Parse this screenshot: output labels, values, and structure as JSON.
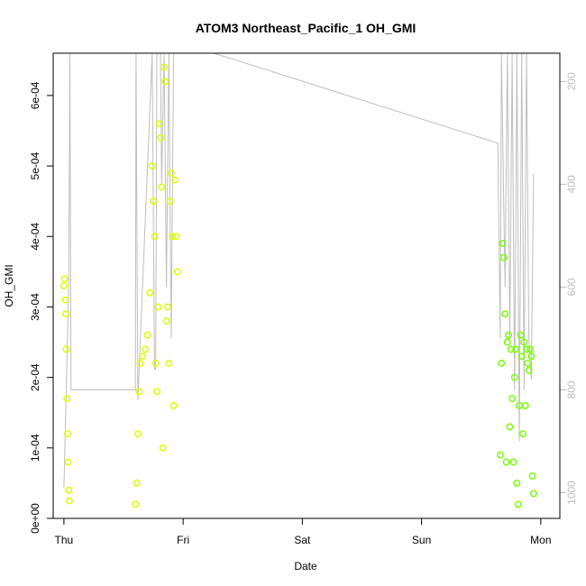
{
  "chart_data": {
    "type": "scatter",
    "title": "ATOM3 Northeast_Pacific_1 OH_GMI",
    "xlabel": "Date",
    "ylabel": "OH_GMI",
    "x_ticks": [
      "Thu",
      "Fri",
      "Sat",
      "Sun",
      "Mon"
    ],
    "x_tick_values": [
      0,
      1,
      2,
      3,
      4
    ],
    "xlim": [
      -0.09,
      4.16
    ],
    "ylim": [
      0,
      0.00066
    ],
    "y_ticks": [
      0,
      0.0001,
      0.0002,
      0.0003,
      0.0004,
      0.0005,
      0.0006
    ],
    "y_tick_labels": [
      "0e+00",
      "1e-04",
      "2e-04",
      "3e-04",
      "4e-04",
      "5e-04",
      "6e-04"
    ],
    "y2_axis": {
      "ticks": [
        200,
        400,
        600,
        800,
        1000
      ],
      "tick_labels": [
        "200",
        "400",
        "600",
        "800",
        "1000"
      ],
      "reversed": true,
      "lim": [
        145,
        1050
      ],
      "color": "#bebebe"
    },
    "grid": false,
    "colors": {
      "early_points": "#ddff00",
      "late_points": "#77ff00",
      "secondary_line": "#bebebe"
    },
    "series": [
      {
        "points": [
          [
            0.0,
            0.00033
          ],
          [
            0.005,
            0.00034
          ],
          [
            0.01,
            0.00031
          ],
          [
            0.015,
            0.00029
          ],
          [
            0.02,
            0.00024
          ],
          [
            0.025,
            0.00017
          ],
          [
            0.03,
            0.00012
          ],
          [
            0.035,
            8e-05
          ],
          [
            0.04,
            4e-05
          ],
          [
            0.045,
            2.5e-05
          ]
        ],
        "color": "#ddff00"
      },
      {
        "points": [
          [
            0.6,
            2e-05
          ],
          [
            0.61,
            5e-05
          ],
          [
            0.62,
            0.00012
          ],
          [
            0.63,
            0.00018
          ],
          [
            0.64,
            0.00022
          ],
          [
            0.66,
            0.00023
          ],
          [
            0.68,
            0.00024
          ],
          [
            0.7,
            0.00026
          ],
          [
            0.72,
            0.00032
          ],
          [
            0.74,
            0.0005
          ],
          [
            0.75,
            0.00045
          ],
          [
            0.76,
            0.0004
          ],
          [
            0.77,
            0.00022
          ],
          [
            0.78,
            0.00018
          ],
          [
            0.79,
            0.0003
          ],
          [
            0.8,
            0.00056
          ],
          [
            0.81,
            0.00054
          ],
          [
            0.82,
            0.00047
          ],
          [
            0.83,
            0.0001
          ],
          [
            0.84,
            0.00064
          ],
          [
            0.85,
            0.00062
          ],
          [
            0.86,
            0.00028
          ],
          [
            0.87,
            0.0003
          ],
          [
            0.88,
            0.00022
          ],
          [
            0.89,
            0.00045
          ],
          [
            0.9,
            0.00049
          ],
          [
            0.91,
            0.0004
          ],
          [
            0.92,
            0.00016
          ],
          [
            0.93,
            0.00048
          ],
          [
            0.94,
            0.0004
          ],
          [
            0.95,
            0.00035
          ]
        ],
        "color": "#ddff00"
      },
      {
        "points": [
          [
            3.66,
            9e-05
          ],
          [
            3.67,
            0.00022
          ],
          [
            3.68,
            0.00039
          ],
          [
            3.69,
            0.00037
          ],
          [
            3.7,
            0.00029
          ],
          [
            3.71,
            8e-05
          ],
          [
            3.72,
            0.00025
          ],
          [
            3.73,
            0.00026
          ],
          [
            3.74,
            0.00013
          ],
          [
            3.75,
            0.00024
          ],
          [
            3.76,
            0.00017
          ],
          [
            3.77,
            8e-05
          ],
          [
            3.78,
            0.0002
          ],
          [
            3.79,
            0.00024
          ],
          [
            3.8,
            5e-05
          ],
          [
            3.81,
            2e-05
          ],
          [
            3.82,
            0.00016
          ],
          [
            3.83,
            0.00026
          ],
          [
            3.84,
            0.00023
          ],
          [
            3.85,
            0.00012
          ],
          [
            3.86,
            0.00025
          ],
          [
            3.87,
            0.00016
          ],
          [
            3.88,
            0.00024
          ],
          [
            3.89,
            0.00022
          ],
          [
            3.9,
            0.00021
          ],
          [
            3.91,
            0.00024
          ],
          [
            3.92,
            0.00023
          ],
          [
            3.93,
            6e-05
          ],
          [
            3.94,
            3.5e-05
          ]
        ],
        "color": "#77ff00"
      }
    ],
    "secondary_series": {
      "axis": "y2",
      "color": "#bebebe",
      "points": [
        [
          0.0,
          990
        ],
        [
          0.02,
          800
        ],
        [
          0.04,
          600
        ],
        [
          0.05,
          145
        ],
        [
          0.06,
          800
        ],
        [
          0.6,
          800
        ],
        [
          0.605,
          145
        ],
        [
          0.62,
          820
        ],
        [
          0.74,
          145
        ],
        [
          0.76,
          760
        ],
        [
          0.77,
          760
        ],
        [
          0.78,
          145
        ],
        [
          0.81,
          145
        ],
        [
          0.82,
          400
        ],
        [
          0.84,
          145
        ],
        [
          0.86,
          600
        ],
        [
          0.88,
          145
        ],
        [
          0.9,
          700
        ],
        [
          0.92,
          145
        ],
        [
          1.26,
          145
        ],
        [
          3.64,
          320
        ],
        [
          3.66,
          700
        ],
        [
          3.67,
          145
        ],
        [
          3.7,
          600
        ],
        [
          3.72,
          145
        ],
        [
          3.74,
          700
        ],
        [
          3.76,
          145
        ],
        [
          3.78,
          800
        ],
        [
          3.8,
          145
        ],
        [
          3.82,
          900
        ],
        [
          3.84,
          145
        ],
        [
          3.86,
          800
        ],
        [
          3.88,
          145
        ],
        [
          3.9,
          700
        ],
        [
          3.92,
          780
        ],
        [
          3.94,
          380
        ]
      ]
    }
  }
}
